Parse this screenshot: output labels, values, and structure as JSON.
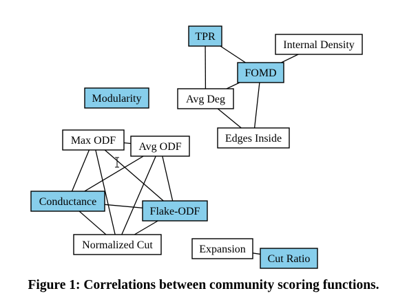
{
  "colors": {
    "highlight_fill": "#87ceeb",
    "plain_fill": "#ffffff",
    "stroke": "#000000"
  },
  "nodes": [
    {
      "id": "tpr",
      "label": "TPR",
      "highlighted": true
    },
    {
      "id": "internal-density",
      "label": "Internal Density",
      "highlighted": false
    },
    {
      "id": "fomd",
      "label": "FOMD",
      "highlighted": true
    },
    {
      "id": "modularity",
      "label": "Modularity",
      "highlighted": true
    },
    {
      "id": "avg-deg",
      "label": "Avg Deg",
      "highlighted": false
    },
    {
      "id": "edges-inside",
      "label": "Edges Inside",
      "highlighted": false
    },
    {
      "id": "max-odf",
      "label": "Max ODF",
      "highlighted": false
    },
    {
      "id": "avg-odf",
      "label": "Avg ODF",
      "highlighted": false
    },
    {
      "id": "conductance",
      "label": "Conductance",
      "highlighted": true
    },
    {
      "id": "flake-odf",
      "label": "Flake-ODF",
      "highlighted": true
    },
    {
      "id": "normalized-cut",
      "label": "Normalized Cut",
      "highlighted": false
    },
    {
      "id": "expansion",
      "label": "Expansion",
      "highlighted": false
    },
    {
      "id": "cut-ratio",
      "label": "Cut Ratio",
      "highlighted": true
    }
  ],
  "edges": [
    [
      "tpr",
      "fomd"
    ],
    [
      "tpr",
      "avg-deg"
    ],
    [
      "fomd",
      "internal-density"
    ],
    [
      "fomd",
      "avg-deg"
    ],
    [
      "fomd",
      "edges-inside"
    ],
    [
      "avg-deg",
      "edges-inside"
    ],
    [
      "max-odf",
      "avg-odf"
    ],
    [
      "max-odf",
      "conductance"
    ],
    [
      "max-odf",
      "flake-odf"
    ],
    [
      "max-odf",
      "normalized-cut"
    ],
    [
      "avg-odf",
      "conductance"
    ],
    [
      "avg-odf",
      "flake-odf"
    ],
    [
      "avg-odf",
      "normalized-cut"
    ],
    [
      "conductance",
      "flake-odf"
    ],
    [
      "conductance",
      "normalized-cut"
    ],
    [
      "flake-odf",
      "normalized-cut"
    ],
    [
      "expansion",
      "cut-ratio"
    ]
  ],
  "caption": "Figure 1: Correlations between community scoring functions."
}
